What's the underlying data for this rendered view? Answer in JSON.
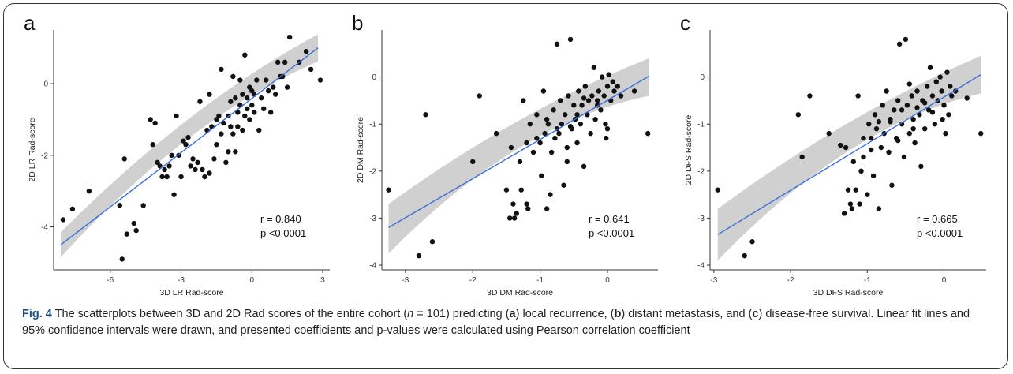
{
  "caption": {
    "fig_label": "Fig. 4",
    "t1": " The scatterplots between 3D and 2D Rad scores of the entire cohort (",
    "n_italic": "n",
    "t2": " = 101) predicting (",
    "a": "a",
    "t3": ") local recurrence, (",
    "b": "b",
    "t4": ") distant metastasis, and (",
    "c": "c",
    "t5": ") disease-free survival. Linear fit lines and 95% confidence intervals were drawn, and presented coefficients and p-values were calculated using Pearson correlation coefficient"
  },
  "colors": {
    "point": "#111111",
    "fit_line": "#3b6fd8",
    "ci_band": "#c8c8c8"
  },
  "chart_data": [
    {
      "type": "scatter",
      "panel_label": "a",
      "xlabel": "3D LR Rad-score",
      "ylabel": "2D LR Rad-score",
      "xlim": [
        -8.4,
        3.3
      ],
      "ylim": [
        -5.2,
        1.5
      ],
      "xticks": [
        -6,
        -3,
        0,
        3
      ],
      "yticks": [
        -4,
        -2,
        0
      ],
      "fit": {
        "x0": -8.1,
        "y0": -4.5,
        "x1": 2.8,
        "y1": 1.0
      },
      "ci": {
        "lower0": -4.85,
        "upper0": -4.15,
        "lowerMid": -0.9,
        "upperMid": -0.55,
        "lower1": 0.62,
        "upper1": 1.38
      },
      "stats": {
        "r": "r = 0.840",
        "p": "p <0.0001"
      },
      "points": [
        [
          -8.0,
          -3.8
        ],
        [
          -7.6,
          -3.5
        ],
        [
          -6.9,
          -3.0
        ],
        [
          -5.6,
          -3.4
        ],
        [
          -5.5,
          -4.9
        ],
        [
          -5.3,
          -4.2
        ],
        [
          -5.4,
          -2.1
        ],
        [
          -5.0,
          -3.9
        ],
        [
          -4.9,
          -4.1
        ],
        [
          -4.6,
          -3.4
        ],
        [
          -4.3,
          -1.0
        ],
        [
          -4.2,
          -1.7
        ],
        [
          -4.1,
          -1.1
        ],
        [
          -4.0,
          -2.2
        ],
        [
          -3.9,
          -2.3
        ],
        [
          -3.8,
          -2.6
        ],
        [
          -3.7,
          -2.4
        ],
        [
          -3.6,
          -2.6
        ],
        [
          -3.5,
          -2.3
        ],
        [
          -3.4,
          -2.0
        ],
        [
          -3.3,
          -3.1
        ],
        [
          -3.2,
          -0.9
        ],
        [
          -3.1,
          -2.0
        ],
        [
          -3.0,
          -2.6
        ],
        [
          -2.9,
          -1.6
        ],
        [
          -2.8,
          -1.7
        ],
        [
          -2.7,
          -1.5
        ],
        [
          -2.6,
          -2.3
        ],
        [
          -2.5,
          -2.1
        ],
        [
          -2.4,
          -2.4
        ],
        [
          -2.3,
          -2.2
        ],
        [
          -2.2,
          -0.5
        ],
        [
          -2.1,
          -2.4
        ],
        [
          -2.0,
          -2.6
        ],
        [
          -1.9,
          -1.3
        ],
        [
          -1.8,
          -0.3
        ],
        [
          -1.8,
          -2.5
        ],
        [
          -1.7,
          -1.2
        ],
        [
          -1.6,
          -2.1
        ],
        [
          -1.5,
          -1.0
        ],
        [
          -1.5,
          -1.7
        ],
        [
          -1.4,
          -0.9
        ],
        [
          -1.3,
          -1.4
        ],
        [
          -1.3,
          0.4
        ],
        [
          -1.2,
          -1.1
        ],
        [
          -1.1,
          -2.2
        ],
        [
          -1.0,
          -0.9
        ],
        [
          -1.0,
          -1.9
        ],
        [
          -0.9,
          -0.5
        ],
        [
          -0.9,
          -1.2
        ],
        [
          -0.8,
          0.2
        ],
        [
          -0.8,
          -1.4
        ],
        [
          -0.7,
          -0.4
        ],
        [
          -0.7,
          -1.9
        ],
        [
          -0.6,
          -0.8
        ],
        [
          -0.6,
          -1.2
        ],
        [
          -0.5,
          0.1
        ],
        [
          -0.5,
          -0.6
        ],
        [
          -0.4,
          -1.3
        ],
        [
          -0.4,
          -0.3
        ],
        [
          -0.3,
          -0.9
        ],
        [
          -0.3,
          0.8
        ],
        [
          -0.2,
          -0.4
        ],
        [
          -0.2,
          -0.7
        ],
        [
          -0.1,
          -0.1
        ],
        [
          -0.1,
          -1.0
        ],
        [
          0.0,
          -0.2
        ],
        [
          0.0,
          -0.6
        ],
        [
          0.1,
          -0.8
        ],
        [
          0.1,
          -0.3
        ],
        [
          0.2,
          0.1
        ],
        [
          0.3,
          -1.3
        ],
        [
          0.4,
          -0.4
        ],
        [
          0.5,
          -0.7
        ],
        [
          0.6,
          0.1
        ],
        [
          0.7,
          -0.2
        ],
        [
          0.8,
          -0.8
        ],
        [
          0.9,
          -0.1
        ],
        [
          1.0,
          -0.3
        ],
        [
          1.1,
          0.6
        ],
        [
          1.2,
          0.2
        ],
        [
          1.3,
          0.2
        ],
        [
          1.4,
          0.6
        ],
        [
          1.5,
          -0.1
        ],
        [
          1.6,
          1.3
        ],
        [
          2.0,
          0.6
        ],
        [
          2.3,
          0.9
        ],
        [
          2.5,
          0.4
        ],
        [
          2.9,
          0.1
        ]
      ]
    },
    {
      "type": "scatter",
      "panel_label": "b",
      "xlabel": "3D DM Rad-score",
      "ylabel": "2D DM Rad-score",
      "xlim": [
        -3.35,
        0.75
      ],
      "ylim": [
        -4.1,
        1.0
      ],
      "xticks": [
        -3,
        -2,
        -1,
        0
      ],
      "yticks": [
        -4,
        -3,
        -2,
        -1,
        0
      ],
      "fit": {
        "x0": -3.25,
        "y0": -3.2,
        "x1": 0.62,
        "y1": 0.02
      },
      "ci": {
        "lower0": -3.75,
        "upper0": -2.7,
        "lowerMid": -0.95,
        "upperMid": -0.7,
        "lower1": -0.4,
        "upper1": 0.4
      },
      "stats": {
        "r": "r = 0.641",
        "p": "p <0.0001"
      },
      "points": [
        [
          -3.25,
          -2.4
        ],
        [
          -2.8,
          -3.8
        ],
        [
          -2.7,
          -0.8
        ],
        [
          -2.6,
          -3.5
        ],
        [
          -2.0,
          -1.8
        ],
        [
          -1.9,
          -0.4
        ],
        [
          -1.65,
          -1.2
        ],
        [
          -1.5,
          -2.4
        ],
        [
          -1.45,
          -3.0
        ],
        [
          -1.43,
          -1.5
        ],
        [
          -1.4,
          -2.7
        ],
        [
          -1.38,
          -3.0
        ],
        [
          -1.35,
          -2.9
        ],
        [
          -1.3,
          -1.8
        ],
        [
          -1.28,
          -2.4
        ],
        [
          -1.25,
          -0.5
        ],
        [
          -1.2,
          -2.7
        ],
        [
          -1.18,
          -2.8
        ],
        [
          -1.15,
          -1.0
        ],
        [
          -1.1,
          -1.6
        ],
        [
          -1.05,
          -0.8
        ],
        [
          -1.0,
          -1.4
        ],
        [
          -0.98,
          -2.1
        ],
        [
          -0.95,
          -0.3
        ],
        [
          -0.93,
          -1.2
        ],
        [
          -0.9,
          -2.8
        ],
        [
          -0.88,
          -1.0
        ],
        [
          -0.85,
          -2.5
        ],
        [
          -0.83,
          -1.6
        ],
        [
          -0.8,
          -0.7
        ],
        [
          -0.78,
          -1.3
        ],
        [
          -0.75,
          0.7
        ],
        [
          -0.72,
          -1.2
        ],
        [
          -0.7,
          -0.5
        ],
        [
          -0.68,
          -1.0
        ],
        [
          -0.65,
          -2.3
        ],
        [
          -0.63,
          -0.8
        ],
        [
          -0.6,
          -1.8
        ],
        [
          -0.58,
          -0.4
        ],
        [
          -0.55,
          0.8
        ],
        [
          -0.53,
          -1.1
        ],
        [
          -0.5,
          -0.6
        ],
        [
          -0.48,
          -0.9
        ],
        [
          -0.45,
          -1.4
        ],
        [
          -0.43,
          -0.3
        ],
        [
          -0.4,
          -1.0
        ],
        [
          -0.38,
          -0.6
        ],
        [
          -0.35,
          -1.9
        ],
        [
          -0.33,
          -0.2
        ],
        [
          -0.3,
          -0.8
        ],
        [
          -0.28,
          -0.5
        ],
        [
          -0.25,
          -1.2
        ],
        [
          -0.23,
          -0.4
        ],
        [
          -0.2,
          0.2
        ],
        [
          -0.18,
          -0.9
        ],
        [
          -0.15,
          -0.5
        ],
        [
          -0.13,
          -0.3
        ],
        [
          -0.1,
          -0.7
        ],
        [
          -0.08,
          0.0
        ],
        [
          -0.05,
          -0.4
        ],
        [
          -0.03,
          -1.0
        ],
        [
          0.0,
          -0.2
        ],
        [
          0.02,
          0.05
        ],
        [
          0.05,
          -0.5
        ],
        [
          0.08,
          -0.1
        ],
        [
          0.1,
          -0.3
        ],
        [
          0.15,
          -0.2
        ],
        [
          -0.02,
          -1.3
        ],
        [
          0.0,
          -1.1
        ],
        [
          -0.6,
          -1.5
        ],
        [
          -1.05,
          -1.3
        ],
        [
          -0.75,
          -1.1
        ],
        [
          -0.45,
          -0.8
        ],
        [
          -0.15,
          -0.6
        ],
        [
          0.2,
          -0.4
        ],
        [
          0.4,
          -0.3
        ],
        [
          0.6,
          -1.2
        ],
        [
          -0.9,
          -0.9
        ],
        [
          -1.2,
          -1.4
        ],
        [
          -0.35,
          -0.45
        ],
        [
          -0.55,
          -1.05
        ]
      ]
    },
    {
      "type": "scatter",
      "panel_label": "c",
      "xlabel": "3D DFS Rad-score",
      "ylabel": "2D DFS Rad-score",
      "xlim": [
        -3.05,
        0.55
      ],
      "ylim": [
        -4.1,
        1.0
      ],
      "xticks": [
        -3,
        -2,
        -1,
        0
      ],
      "yticks": [
        -4,
        -3,
        -2,
        -1,
        0
      ],
      "fit": {
        "x0": -2.95,
        "y0": -3.35,
        "x1": 0.48,
        "y1": 0.05
      },
      "ci": {
        "lower0": -3.9,
        "upper0": -2.8,
        "lowerMid": -1.0,
        "upperMid": -0.75,
        "lower1": -0.35,
        "upper1": 0.45
      },
      "stats": {
        "r": "r = 0.665",
        "p": "p <0.0001"
      },
      "points": [
        [
          -2.95,
          -2.4
        ],
        [
          -2.6,
          -3.8
        ],
        [
          -2.5,
          -3.5
        ],
        [
          -1.9,
          -0.8
        ],
        [
          -1.85,
          -1.7
        ],
        [
          -1.75,
          -0.4
        ],
        [
          -1.5,
          -1.2
        ],
        [
          -1.3,
          -2.9
        ],
        [
          -1.28,
          -1.5
        ],
        [
          -1.25,
          -2.4
        ],
        [
          -1.22,
          -2.7
        ],
        [
          -1.2,
          -2.8
        ],
        [
          -1.18,
          -1.8
        ],
        [
          -1.15,
          -2.4
        ],
        [
          -1.12,
          -0.4
        ],
        [
          -1.1,
          -2.7
        ],
        [
          -1.08,
          -2.0
        ],
        [
          -1.05,
          -1.7
        ],
        [
          -1.0,
          -2.5
        ],
        [
          -0.98,
          -1.0
        ],
        [
          -0.95,
          -1.3
        ],
        [
          -0.92,
          -2.1
        ],
        [
          -0.9,
          -0.8
        ],
        [
          -0.88,
          -1.1
        ],
        [
          -0.85,
          -2.8
        ],
        [
          -0.82,
          -1.5
        ],
        [
          -0.8,
          -0.6
        ],
        [
          -0.78,
          -1.2
        ],
        [
          -0.75,
          -0.3
        ],
        [
          -0.72,
          -1.6
        ],
        [
          -0.7,
          -0.9
        ],
        [
          -0.68,
          -2.3
        ],
        [
          -0.65,
          -0.7
        ],
        [
          -0.62,
          -1.3
        ],
        [
          -0.6,
          -0.5
        ],
        [
          -0.58,
          0.7
        ],
        [
          -0.55,
          -1.0
        ],
        [
          -0.52,
          -1.7
        ],
        [
          -0.5,
          0.8
        ],
        [
          -0.48,
          -0.6
        ],
        [
          -0.45,
          -1.2
        ],
        [
          -0.42,
          -0.4
        ],
        [
          -0.4,
          -0.9
        ],
        [
          -0.38,
          -1.4
        ],
        [
          -0.35,
          -0.3
        ],
        [
          -0.32,
          -0.8
        ],
        [
          -0.3,
          -1.9
        ],
        [
          -0.28,
          -0.5
        ],
        [
          -0.25,
          -1.1
        ],
        [
          -0.22,
          -0.2
        ],
        [
          -0.2,
          -0.7
        ],
        [
          -0.18,
          0.2
        ],
        [
          -0.15,
          -0.4
        ],
        [
          -0.12,
          -1.0
        ],
        [
          -0.1,
          -0.1
        ],
        [
          -0.08,
          -0.5
        ],
        [
          -0.05,
          0.0
        ],
        [
          -0.03,
          -0.3
        ],
        [
          0.0,
          -0.6
        ],
        [
          0.02,
          -1.2
        ],
        [
          0.04,
          0.1
        ],
        [
          0.06,
          -0.8
        ],
        [
          0.08,
          -0.2
        ],
        [
          0.1,
          -0.4
        ],
        [
          -0.02,
          -0.9
        ],
        [
          -0.4,
          -1.1
        ],
        [
          -0.7,
          -0.95
        ],
        [
          -0.95,
          -1.55
        ],
        [
          -0.55,
          -0.7
        ],
        [
          -0.25,
          -0.55
        ],
        [
          0.15,
          -0.3
        ],
        [
          0.3,
          -0.45
        ],
        [
          0.48,
          -1.2
        ],
        [
          -1.05,
          -1.3
        ],
        [
          -0.85,
          -0.95
        ],
        [
          -0.6,
          -1.35
        ],
        [
          -0.35,
          -0.65
        ],
        [
          -0.15,
          -0.75
        ],
        [
          -1.35,
          -1.45
        ],
        [
          -0.45,
          -0.15
        ]
      ]
    }
  ]
}
